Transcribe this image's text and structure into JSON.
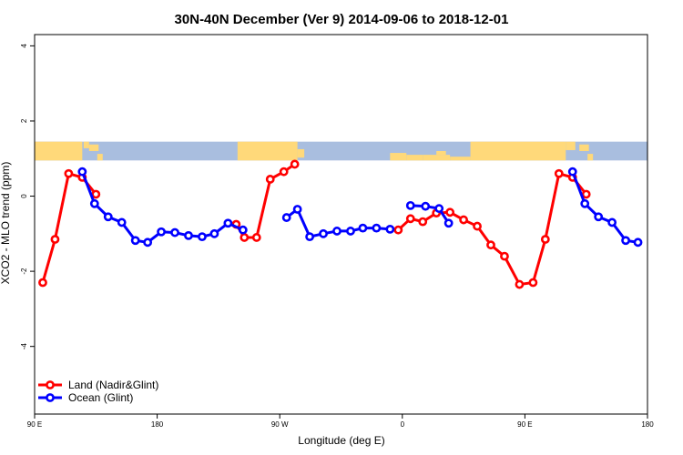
{
  "chart_data": {
    "type": "line",
    "title": "30N-40N December (Ver 9)   2014-09-06 to 2018-12-01",
    "xlabel": "Longitude (deg E)",
    "ylabel": "XCO2 - MLO trend (ppm)",
    "xlim": [
      90,
      540
    ],
    "ylim": [
      -5.8,
      4.3
    ],
    "x_ticks": [
      {
        "value": 90,
        "label": "90 E"
      },
      {
        "value": 180,
        "label": "180"
      },
      {
        "value": 270,
        "label": "90 W"
      },
      {
        "value": 360,
        "label": "0"
      },
      {
        "value": 450,
        "label": "90 E"
      },
      {
        "value": 540,
        "label": "180"
      }
    ],
    "y_ticks": [
      {
        "value": 4,
        "label": "4"
      },
      {
        "value": 2,
        "label": "2"
      },
      {
        "value": 0,
        "label": "0"
      },
      {
        "value": -2,
        "label": "-2"
      },
      {
        "value": -4,
        "label": "-4"
      }
    ],
    "grid": false,
    "legend_position": "bottom-left",
    "map_strip": {
      "y_range": [
        0.95,
        1.45
      ],
      "land_color": "#ffd97a",
      "ocean_color": "#a9bedf"
    },
    "series": [
      {
        "name": "Land (Nadir&Glint)",
        "color": "#ff0000",
        "segments": [
          [
            [
              96,
              -2.3
            ],
            [
              105,
              -1.15
            ],
            [
              115,
              0.6
            ],
            [
              125,
              0.5
            ],
            [
              135,
              0.05
            ]
          ],
          [
            [
              238,
              -0.75
            ],
            [
              244,
              -1.1
            ],
            [
              253,
              -1.1
            ],
            [
              263,
              0.45
            ],
            [
              273,
              0.65
            ],
            [
              281,
              0.85
            ]
          ],
          [
            [
              357,
              -0.9
            ],
            [
              366,
              -0.6
            ],
            [
              375,
              -0.68
            ],
            [
              385,
              -0.45
            ],
            [
              395,
              -0.43
            ],
            [
              405,
              -0.63
            ],
            [
              415,
              -0.8
            ],
            [
              425,
              -1.3
            ],
            [
              435,
              -1.6
            ],
            [
              446,
              -2.35
            ],
            [
              456,
              -2.3
            ],
            [
              465,
              -1.15
            ],
            [
              475,
              0.6
            ],
            [
              485,
              0.5
            ],
            [
              495,
              0.05
            ]
          ]
        ]
      },
      {
        "name": "Ocean (Glint)",
        "color": "#0000ff",
        "segments": [
          [
            [
              125,
              0.65
            ],
            [
              134,
              -0.2
            ],
            [
              144,
              -0.55
            ],
            [
              154,
              -0.7
            ],
            [
              164,
              -1.18
            ],
            [
              173,
              -1.23
            ],
            [
              183,
              -0.95
            ],
            [
              193,
              -0.97
            ],
            [
              203,
              -1.05
            ],
            [
              213,
              -1.08
            ],
            [
              222,
              -1.0
            ],
            [
              232,
              -0.72
            ],
            [
              243,
              -0.9
            ]
          ],
          [
            [
              275,
              -0.57
            ],
            [
              283,
              -0.35
            ],
            [
              292,
              -1.08
            ],
            [
              302,
              -1.0
            ],
            [
              312,
              -0.93
            ],
            [
              322,
              -0.93
            ],
            [
              331,
              -0.85
            ],
            [
              341,
              -0.85
            ],
            [
              351,
              -0.88
            ]
          ],
          [
            [
              366,
              -0.25
            ],
            [
              377,
              -0.27
            ],
            [
              387,
              -0.33
            ],
            [
              394,
              -0.72
            ]
          ],
          [
            [
              485,
              0.65
            ],
            [
              494,
              -0.2
            ],
            [
              504,
              -0.55
            ],
            [
              514,
              -0.7
            ],
            [
              524,
              -1.18
            ],
            [
              533,
              -1.23
            ]
          ]
        ]
      }
    ]
  }
}
